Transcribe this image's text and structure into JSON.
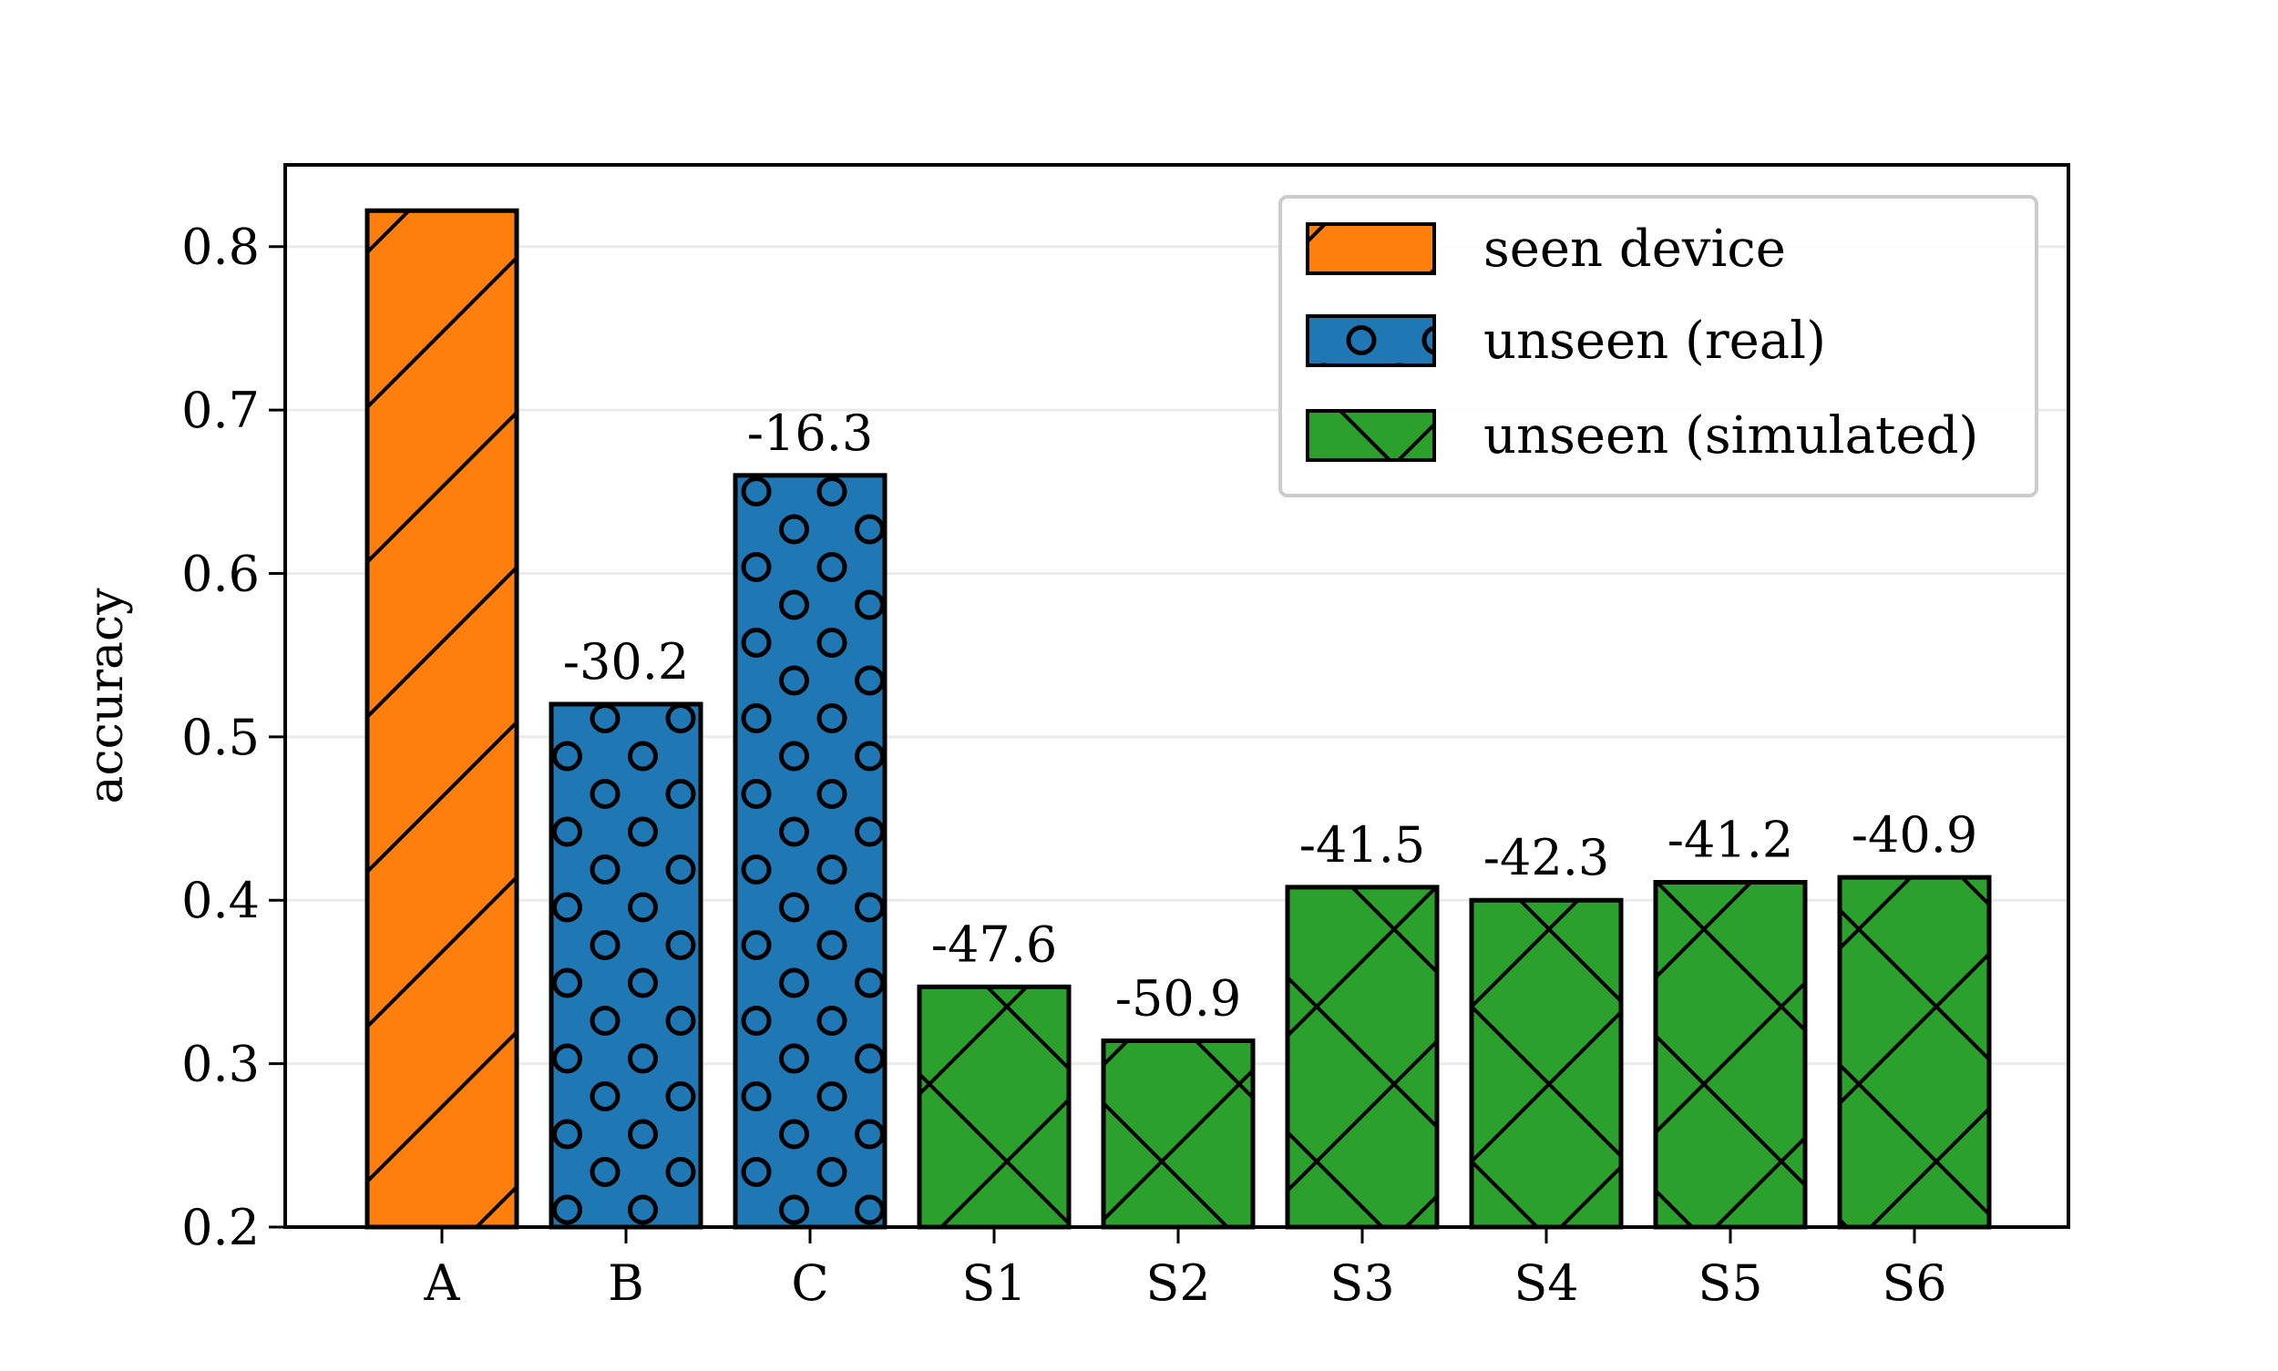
{
  "chart_data": {
    "type": "bar",
    "categories": [
      "A",
      "B",
      "C",
      "S1",
      "S2",
      "S3",
      "S4",
      "S5",
      "S6"
    ],
    "values": [
      0.822,
      0.52,
      0.66,
      0.347,
      0.314,
      0.408,
      0.4,
      0.411,
      0.414
    ],
    "groups": [
      "seen",
      "real",
      "real",
      "sim",
      "sim",
      "sim",
      "sim",
      "sim",
      "sim"
    ],
    "bar_labels": [
      "",
      "-30.2",
      "-16.3",
      "-47.6",
      "-50.9",
      "-41.5",
      "-42.3",
      "-41.2",
      "-40.9"
    ],
    "title": "",
    "xlabel": "",
    "ylabel": "accuracy",
    "ylim": [
      0.2,
      0.85
    ],
    "yticks": [
      "0.2",
      "0.3",
      "0.4",
      "0.5",
      "0.6",
      "0.7",
      "0.8"
    ],
    "grid": "horizontal",
    "legend_position": "top-right",
    "legend": [
      {
        "key": "seen",
        "label": "seen device",
        "color": "#ff7f0e",
        "hatch": "diagonal"
      },
      {
        "key": "real",
        "label": "unseen (real)",
        "color": "#1f77b4",
        "hatch": "circles"
      },
      {
        "key": "sim",
        "label": "unseen (simulated)",
        "color": "#2ca02c",
        "hatch": "crosshatch"
      }
    ]
  }
}
